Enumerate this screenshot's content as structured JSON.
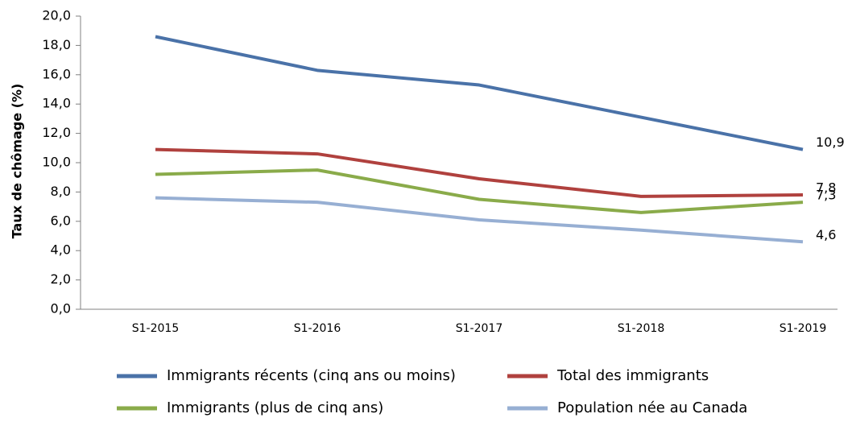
{
  "chart_data": {
    "type": "line",
    "y_label": "Taux de chômage (%)",
    "categories": [
      "S1-2015",
      "S1-2016",
      "S1-2017",
      "S1-2018",
      "S1-2019"
    ],
    "series": [
      {
        "name": "Immigrants récents (cinq ans ou moins)",
        "color": "#4a72a8",
        "values": [
          18.6,
          16.3,
          15.3,
          13.1,
          10.9
        ],
        "value_labels": [
          null,
          null,
          null,
          null,
          "10,9"
        ]
      },
      {
        "name": "Total des immigrants",
        "color": "#b0413e",
        "values": [
          10.9,
          10.6,
          8.9,
          7.7,
          7.8
        ],
        "value_labels": [
          null,
          null,
          null,
          null,
          "7,8"
        ]
      },
      {
        "name": "Immigrants (plus de cinq ans)",
        "color": "#8aab4a",
        "values": [
          9.2,
          9.5,
          7.5,
          6.6,
          7.3
        ],
        "value_labels": [
          null,
          null,
          null,
          null,
          "7,3"
        ]
      },
      {
        "name": "Population née au Canada",
        "color": "#97afd3",
        "values": [
          7.6,
          7.3,
          6.1,
          5.4,
          4.6
        ],
        "value_labels": [
          null,
          null,
          null,
          null,
          "4,6"
        ]
      }
    ],
    "ylim": [
      0,
      20
    ],
    "yticks": [
      {
        "value": 0,
        "label": "0,0"
      },
      {
        "value": 2,
        "label": "2,0"
      },
      {
        "value": 4,
        "label": "4,0"
      },
      {
        "value": 6,
        "label": "6,0"
      },
      {
        "value": 8,
        "label": "8,0"
      },
      {
        "value": 10,
        "label": "10,0"
      },
      {
        "value": 12,
        "label": "12,0"
      },
      {
        "value": 14,
        "label": "14,0"
      },
      {
        "value": 16,
        "label": "16,0"
      },
      {
        "value": 18,
        "label": "18,0"
      },
      {
        "value": 20,
        "label": "20,0"
      }
    ],
    "grid": false
  }
}
